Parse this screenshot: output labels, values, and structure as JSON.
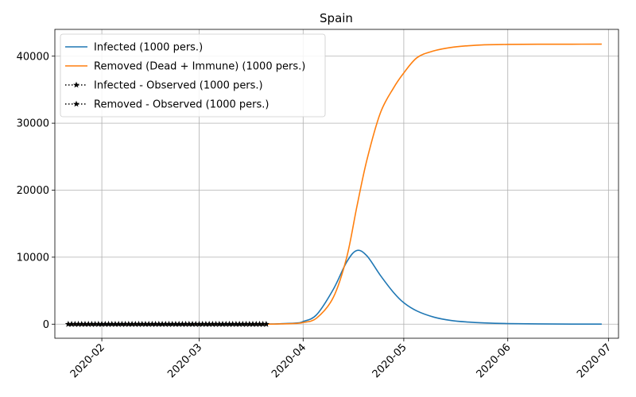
{
  "chart_data": {
    "type": "line",
    "title": "Spain",
    "xlabel": "",
    "ylabel": "",
    "x_range": [
      "2020-01-18",
      "2020-07-04"
    ],
    "ylim": [
      -2100,
      44000
    ],
    "x_ticks": [
      "2020-02",
      "2020-03",
      "2020-04",
      "2020-05",
      "2020-06",
      "2020-07"
    ],
    "y_ticks": [
      0,
      10000,
      20000,
      30000,
      40000
    ],
    "grid": true,
    "legend_position": "top-left",
    "series": [
      {
        "name": "Infected (1000 pers.)",
        "color": "#1f77b4",
        "style": "solid",
        "x": [
          "2020-01-22",
          "2020-03-01",
          "2020-03-20",
          "2020-03-25",
          "2020-03-30",
          "2020-04-01",
          "2020-04-05",
          "2020-04-10",
          "2020-04-14",
          "2020-04-17",
          "2020-04-20",
          "2020-04-24",
          "2020-04-28",
          "2020-05-01",
          "2020-05-05",
          "2020-05-10",
          "2020-05-15",
          "2020-05-20",
          "2020-05-25",
          "2020-06-01",
          "2020-06-10",
          "2020-06-20",
          "2020-06-29"
        ],
        "y": [
          0,
          0,
          20,
          60,
          170,
          400,
          1400,
          5200,
          9300,
          11000,
          10200,
          7300,
          4700,
          3200,
          1950,
          1050,
          560,
          320,
          190,
          90,
          35,
          15,
          8
        ]
      },
      {
        "name": "Removed (Dead + Immune) (1000 pers.)",
        "color": "#ff7f0e",
        "style": "solid",
        "x": [
          "2020-01-22",
          "2020-03-01",
          "2020-03-20",
          "2020-03-25",
          "2020-03-30",
          "2020-04-01",
          "2020-04-05",
          "2020-04-10",
          "2020-04-14",
          "2020-04-17",
          "2020-04-20",
          "2020-04-24",
          "2020-04-28",
          "2020-05-01",
          "2020-05-05",
          "2020-05-10",
          "2020-05-15",
          "2020-05-20",
          "2020-05-25",
          "2020-06-01",
          "2020-06-10",
          "2020-06-20",
          "2020-06-29"
        ],
        "y": [
          0,
          0,
          10,
          40,
          120,
          250,
          900,
          4000,
          10000,
          17500,
          24500,
          31500,
          35300,
          37500,
          39800,
          40800,
          41300,
          41550,
          41700,
          41750,
          41780,
          41790,
          41800
        ]
      },
      {
        "name": "Infected - Observed (1000 pers.)",
        "color": "#000000",
        "style": "dotted-star",
        "x_start": "2020-01-22",
        "x_end": "2020-03-21",
        "y_constant": 0
      },
      {
        "name": "Removed - Observed (1000 pers.)",
        "color": "#000000",
        "style": "dotted-star",
        "x_start": "2020-01-22",
        "x_end": "2020-03-21",
        "y_constant": 0
      }
    ]
  }
}
